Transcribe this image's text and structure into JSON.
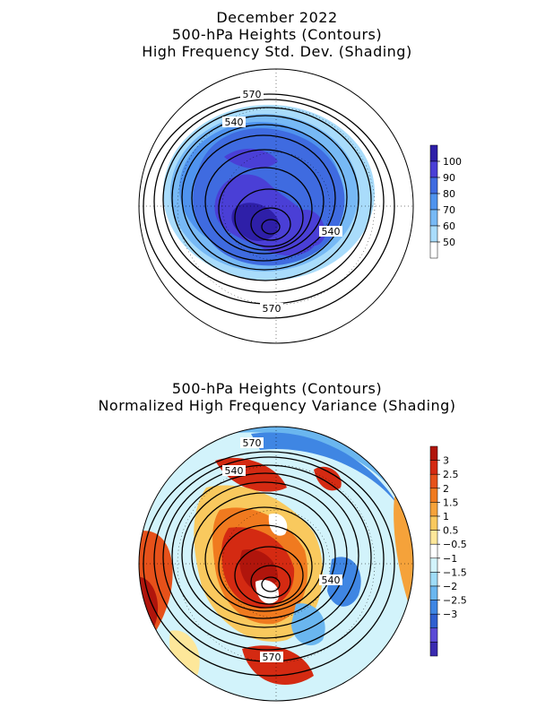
{
  "top_panel": {
    "title_lines": [
      "December 2022",
      "500-hPa Heights (Contours)",
      "High Frequency Std. Dev. (Shading)"
    ],
    "contour_labels": [
      "570",
      "540",
      "540",
      "570"
    ],
    "colorbar": {
      "tick_labels": [
        "100",
        "90",
        "80",
        "70",
        "60",
        "50"
      ],
      "colors": [
        "#2e1fa8",
        "#4a3fd6",
        "#3f6be0",
        "#4f93ee",
        "#77b9f5",
        "#a9dcfb",
        "#ffffff"
      ]
    }
  },
  "bottom_panel": {
    "title_lines": [
      "500-hPa Heights (Contours)",
      "Normalized High Frequency Variance (Shading)"
    ],
    "contour_labels": [
      "570",
      "540",
      "540",
      "570"
    ],
    "colorbar": {
      "tick_labels": [
        "3",
        "2.5",
        "2",
        "1.5",
        "1",
        "0.5",
        "−0.5",
        "−1",
        "−1.5",
        "−2",
        "−2.5",
        "−3"
      ],
      "colors": [
        "#b0150c",
        "#d42a12",
        "#e6511a",
        "#f07a1f",
        "#f5a23a",
        "#f9c95e",
        "#fde79a",
        "#ffffff",
        "#d2f3fb",
        "#9fdcf7",
        "#6ab6ef",
        "#3f86e3",
        "#2f5fd0",
        "#5a4ad6",
        "#3a2bb0"
      ]
    }
  }
}
